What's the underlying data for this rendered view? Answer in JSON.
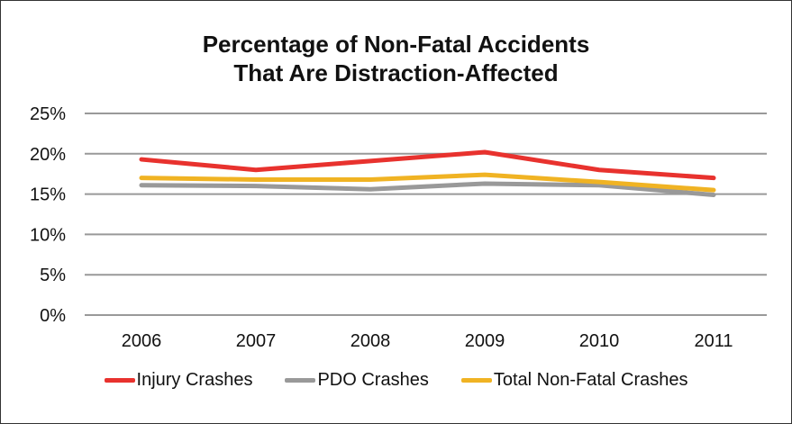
{
  "chart_data": {
    "type": "line",
    "title": "Percentage of Non-Fatal Accidents That Are Distraction-Affected",
    "title_lines": [
      "Percentage of Non-Fatal Accidents",
      "That Are Distraction-Affected"
    ],
    "xlabel": "",
    "ylabel": "",
    "categories": [
      "2006",
      "2007",
      "2008",
      "2009",
      "2010",
      "2011"
    ],
    "yticks": [
      "0%",
      "5%",
      "10%",
      "15%",
      "20%",
      "25%"
    ],
    "ylim": [
      0,
      25
    ],
    "grid": true,
    "legend_position": "bottom",
    "series": [
      {
        "name": "Injury Crashes",
        "color": "#e8322e",
        "values": [
          19.3,
          18.0,
          19.1,
          20.2,
          18.0,
          17.0
        ]
      },
      {
        "name": "PDO Crashes",
        "color": "#999999",
        "values": [
          16.1,
          16.0,
          15.6,
          16.3,
          16.1,
          14.9
        ]
      },
      {
        "name": "Total Non-Fatal Crashes",
        "color": "#f0b323",
        "values": [
          17.0,
          16.8,
          16.8,
          17.4,
          16.5,
          15.5
        ]
      }
    ]
  }
}
